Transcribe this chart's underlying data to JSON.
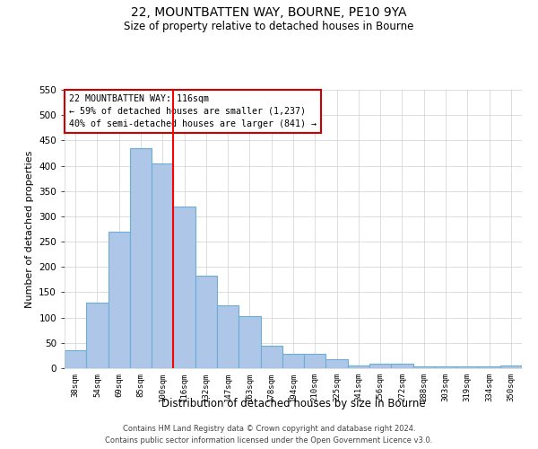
{
  "title_line1": "22, MOUNTBATTEN WAY, BOURNE, PE10 9YA",
  "title_line2": "Size of property relative to detached houses in Bourne",
  "xlabel": "Distribution of detached houses by size in Bourne",
  "ylabel": "Number of detached properties",
  "categories": [
    "38sqm",
    "54sqm",
    "69sqm",
    "85sqm",
    "100sqm",
    "116sqm",
    "132sqm",
    "147sqm",
    "163sqm",
    "178sqm",
    "194sqm",
    "210sqm",
    "225sqm",
    "241sqm",
    "256sqm",
    "272sqm",
    "288sqm",
    "303sqm",
    "319sqm",
    "334sqm",
    "350sqm"
  ],
  "values": [
    35,
    130,
    270,
    435,
    405,
    320,
    183,
    125,
    103,
    45,
    28,
    28,
    17,
    5,
    8,
    8,
    3,
    3,
    3,
    3,
    6
  ],
  "bar_color": "#aec6e8",
  "bar_edge_color": "#6baed6",
  "red_line_index": 5,
  "ylim": [
    0,
    550
  ],
  "yticks": [
    0,
    50,
    100,
    150,
    200,
    250,
    300,
    350,
    400,
    450,
    500,
    550
  ],
  "annotation_title": "22 MOUNTBATTEN WAY: 116sqm",
  "annotation_line1": "← 59% of detached houses are smaller (1,237)",
  "annotation_line2": "40% of semi-detached houses are larger (841) →",
  "annotation_box_color": "#ffffff",
  "annotation_box_edge": "#cc0000",
  "footer_line1": "Contains HM Land Registry data © Crown copyright and database right 2024.",
  "footer_line2": "Contains public sector information licensed under the Open Government Licence v3.0.",
  "background_color": "#ffffff",
  "grid_color": "#d0d0d0"
}
